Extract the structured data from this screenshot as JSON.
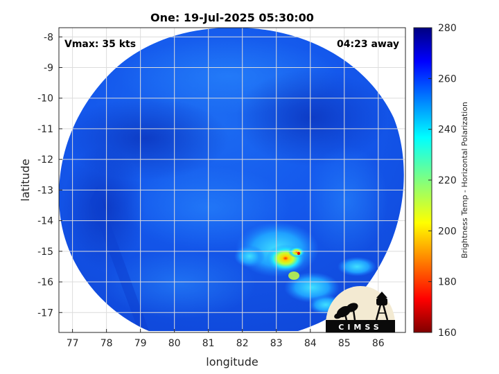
{
  "figure": {
    "title": "One: 19-Jul-2025 05:30:00",
    "vmax_text": "Vmax: 35 kts",
    "away_text": "04:23 away",
    "xlabel": "longitude",
    "ylabel": "latitude",
    "xticks": [
      "77",
      "78",
      "79",
      "80",
      "81",
      "82",
      "83",
      "84",
      "85",
      "86"
    ],
    "yticks": [
      "-8",
      "-9",
      "-10",
      "-11",
      "-12",
      "-13",
      "-14",
      "-15",
      "-16",
      "-17"
    ]
  },
  "colorbar": {
    "label": "Brightness Temp - Horizontal Polarization",
    "ticks": [
      "280",
      "260",
      "240",
      "220",
      "200",
      "180",
      "160"
    ],
    "colormap": "jet",
    "range": [
      160,
      280
    ]
  },
  "logo": {
    "text": "CIMSS"
  },
  "map_data": {
    "type": "microwave_brightness_temperature_swath",
    "xlim": [
      76.6,
      86.8
    ],
    "ylim": [
      -17.65,
      -7.7
    ],
    "swath_center": {
      "lon": 81.6,
      "lat": -12.7
    },
    "dominant_brightness_temp": 262,
    "min_brightness_temp": 185,
    "min_location": {
      "lon": 83.6,
      "lat": -15.1
    }
  },
  "colors": {
    "background": "#ffffff",
    "axes_background": "#ffffff",
    "grid": "#dcdcdc",
    "frame": "#262626"
  }
}
